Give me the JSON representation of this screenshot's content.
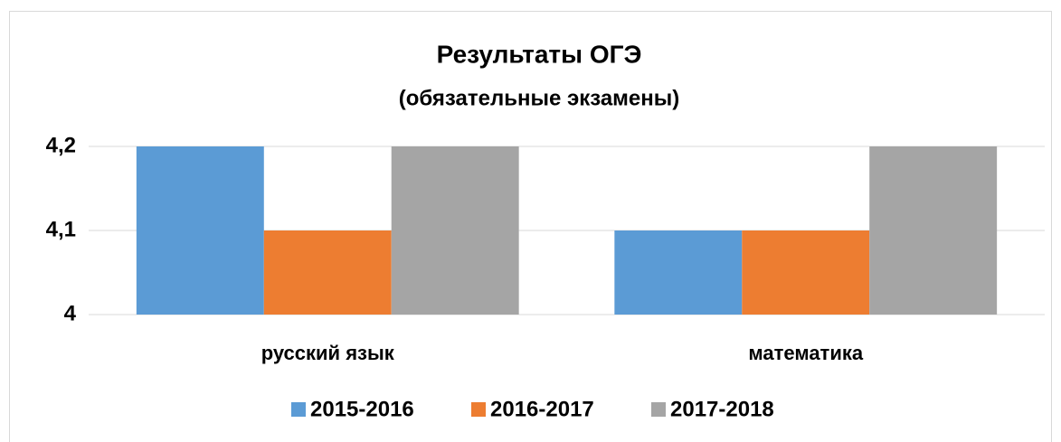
{
  "chart_data": {
    "type": "bar",
    "title": "Результаты ОГЭ",
    "subtitle": "(обязательные экзамены)",
    "categories": [
      "русский язык",
      "математика"
    ],
    "series": [
      {
        "name": "2015-2016",
        "color": "#5b9bd5",
        "values": [
          4.2,
          4.1
        ]
      },
      {
        "name": "2016-2017",
        "color": "#ed7d31",
        "values": [
          4.1,
          4.1
        ]
      },
      {
        "name": "2017-2018",
        "color": "#a5a5a5",
        "values": [
          4.2,
          4.2
        ]
      }
    ],
    "ylim": [
      4,
      4.2
    ],
    "yticks": [
      4,
      {
        "value": 4.1,
        "label": "4,1"
      },
      {
        "value": 4.2,
        "label": "4,2"
      }
    ],
    "grid": true,
    "legend": "bottom"
  }
}
